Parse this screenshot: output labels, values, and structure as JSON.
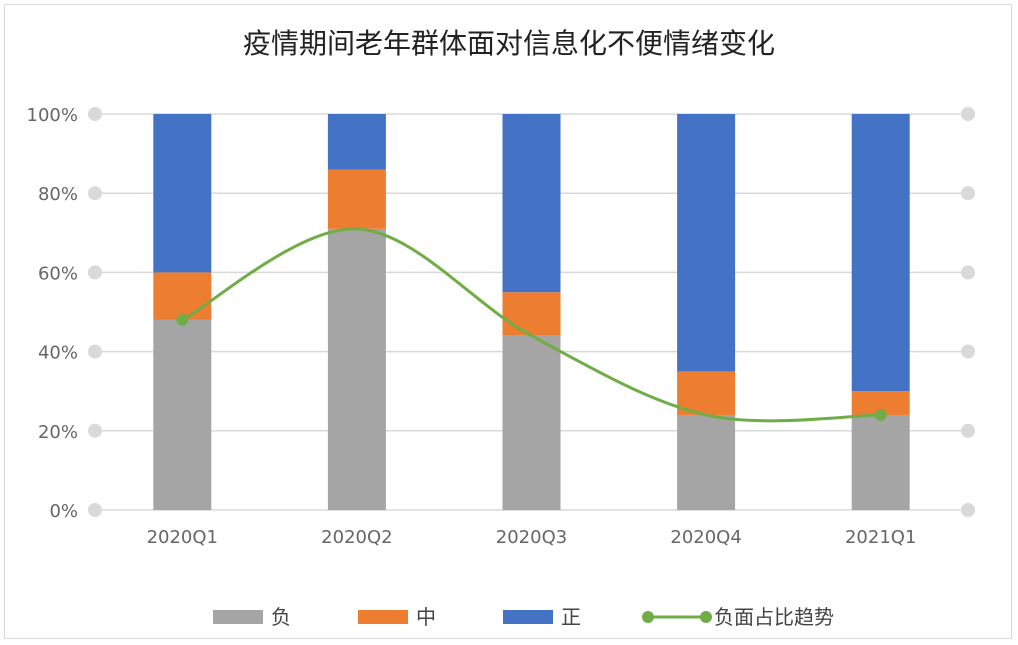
{
  "chart_data": {
    "type": "bar",
    "stacked": true,
    "title": "疫情期间老年群体面对信息化不便情绪变化",
    "categories": [
      "2020Q1",
      "2020Q2",
      "2020Q3",
      "2020Q4",
      "2021Q1"
    ],
    "ylim": [
      0,
      100
    ],
    "yticks": [
      "0%",
      "20%",
      "40%",
      "60%",
      "80%",
      "100%"
    ],
    "series": [
      {
        "name": "负",
        "color": "#a5a5a5",
        "values": [
          48,
          71,
          44,
          24,
          24
        ]
      },
      {
        "name": "中",
        "color": "#ed7d31",
        "values": [
          12,
          15,
          11,
          11,
          6
        ]
      },
      {
        "name": "正",
        "color": "#4472c4",
        "values": [
          40,
          14,
          45,
          65,
          70
        ]
      }
    ],
    "line": {
      "name": "负面占比趋势",
      "color": "#70ad47",
      "values": [
        48,
        71,
        44,
        24,
        24
      ]
    },
    "grid": true,
    "legend_position": "bottom"
  }
}
